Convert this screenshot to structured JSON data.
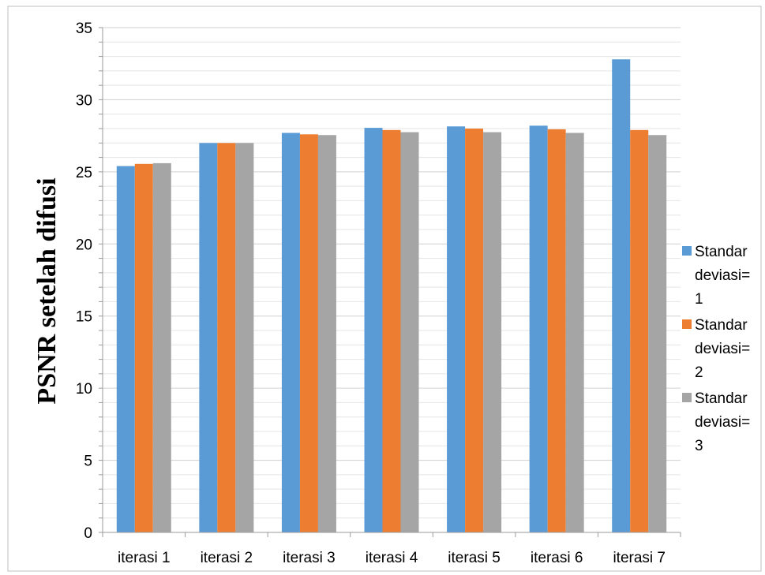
{
  "chart_data": {
    "type": "bar",
    "ylabel": "PSNR setelah difusi",
    "xlabel": "",
    "ylim": [
      0,
      35
    ],
    "y_major_step": 5,
    "y_minor_step": 1,
    "grid": true,
    "legend_position": "right",
    "categories": [
      "iterasi 1",
      "iterasi 2",
      "iterasi 3",
      "iterasi 4",
      "iterasi 5",
      "iterasi 6",
      "iterasi 7"
    ],
    "series": [
      {
        "name_lines": [
          "Standar",
          "deviasi=",
          "1"
        ],
        "color": "#5b9bd5",
        "values": [
          25.4,
          27.0,
          27.7,
          28.05,
          28.15,
          28.2,
          32.8
        ]
      },
      {
        "name_lines": [
          "Standar",
          "deviasi=",
          "2"
        ],
        "color": "#ed7d31",
        "values": [
          25.55,
          27.0,
          27.6,
          27.9,
          28.0,
          27.95,
          27.9
        ]
      },
      {
        "name_lines": [
          "Standar",
          "deviasi=",
          "3"
        ],
        "color": "#a5a5a5",
        "values": [
          25.6,
          27.0,
          27.55,
          27.75,
          27.75,
          27.7,
          27.55
        ]
      }
    ]
  }
}
